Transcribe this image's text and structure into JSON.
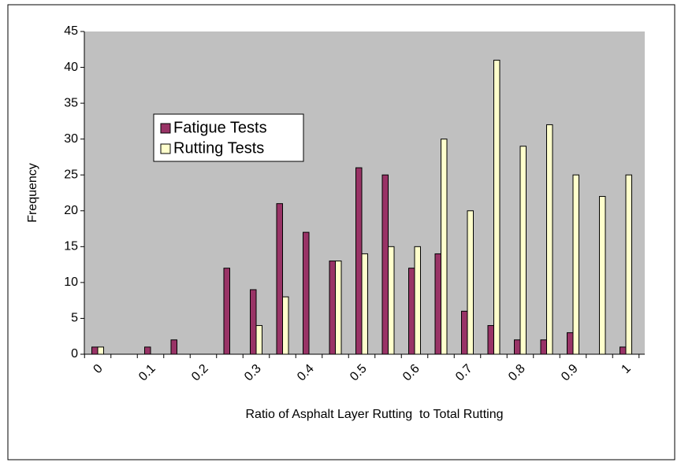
{
  "chart_data": {
    "type": "bar",
    "x_label": "Ratio of Asphalt Layer Rutting  to Total Rutting",
    "y_label": "Frequency",
    "categories": [
      "0",
      null,
      "0.1",
      null,
      "0.2",
      null,
      "0.3",
      null,
      "0.4",
      null,
      "0.5",
      null,
      "0.6",
      null,
      "0.7",
      null,
      "0.8",
      null,
      "0.9",
      null,
      "1"
    ],
    "series": [
      {
        "name": "Fatigue Tests",
        "color": "#993366",
        "values": [
          1,
          0,
          1,
          2,
          0,
          12,
          9,
          21,
          17,
          13,
          26,
          25,
          12,
          14,
          6,
          4,
          2,
          2,
          3,
          0,
          1
        ]
      },
      {
        "name": "Rutting Tests",
        "color": "#ffffcc",
        "values": [
          1,
          0,
          0,
          0,
          0,
          0,
          4,
          8,
          0,
          13,
          14,
          15,
          15,
          30,
          20,
          41,
          29,
          32,
          25,
          22,
          25
        ]
      }
    ],
    "ylim": [
      0,
      45
    ],
    "yticks": [
      0,
      5,
      10,
      15,
      20,
      25,
      30,
      35,
      40,
      45
    ],
    "plot_background": "#c0c0c0",
    "legend": "upper left"
  }
}
